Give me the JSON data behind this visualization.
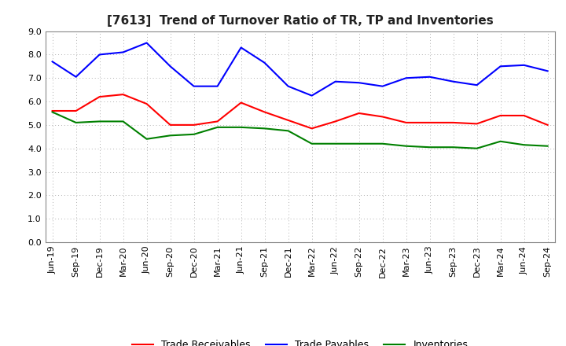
{
  "title": "[7613]  Trend of Turnover Ratio of TR, TP and Inventories",
  "ylim": [
    0.0,
    9.0
  ],
  "yticks": [
    0.0,
    1.0,
    2.0,
    3.0,
    4.0,
    5.0,
    6.0,
    7.0,
    8.0,
    9.0
  ],
  "labels": [
    "Jun-19",
    "Sep-19",
    "Dec-19",
    "Mar-20",
    "Jun-20",
    "Sep-20",
    "Dec-20",
    "Mar-21",
    "Jun-21",
    "Sep-21",
    "Dec-21",
    "Mar-22",
    "Jun-22",
    "Sep-22",
    "Dec-22",
    "Mar-23",
    "Jun-23",
    "Sep-23",
    "Dec-23",
    "Mar-24",
    "Jun-24",
    "Sep-24"
  ],
  "trade_receivables": [
    5.6,
    5.6,
    6.2,
    6.3,
    5.9,
    5.0,
    5.0,
    5.15,
    5.95,
    5.55,
    5.2,
    4.85,
    5.15,
    5.5,
    5.35,
    5.1,
    5.1,
    5.1,
    5.05,
    5.4,
    5.4,
    5.0
  ],
  "trade_payables": [
    7.7,
    7.05,
    8.0,
    8.1,
    8.5,
    7.5,
    6.65,
    6.65,
    8.3,
    7.65,
    6.65,
    6.25,
    6.85,
    6.8,
    6.65,
    7.0,
    7.05,
    6.85,
    6.7,
    7.5,
    7.55,
    7.3
  ],
  "inventories": [
    5.55,
    5.1,
    5.15,
    5.15,
    4.4,
    4.55,
    4.6,
    4.9,
    4.9,
    4.85,
    4.75,
    4.2,
    4.2,
    4.2,
    4.2,
    4.1,
    4.05,
    4.05,
    4.0,
    4.3,
    4.15,
    4.1
  ],
  "line_color_tr": "#ff0000",
  "line_color_tp": "#0000ff",
  "line_color_inv": "#008000",
  "legend_labels": [
    "Trade Receivables",
    "Trade Payables",
    "Inventories"
  ],
  "background_color": "#ffffff",
  "grid_color": "#b0b0b0",
  "title_fontsize": 11,
  "tick_fontsize": 8,
  "legend_fontsize": 9
}
